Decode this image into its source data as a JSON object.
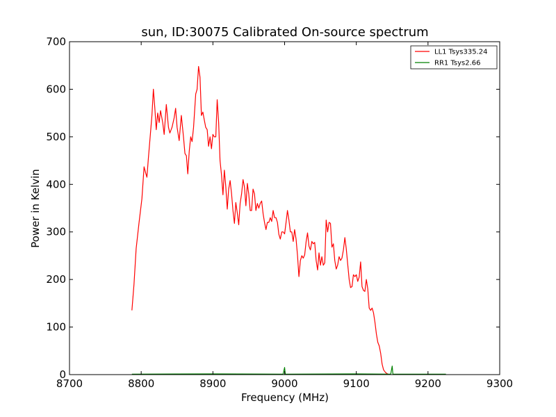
{
  "chart_data": {
    "type": "line",
    "title": "sun, ID:30075 Calibrated On-source spectrum",
    "xlabel": "Frequency (MHz)",
    "ylabel": "Power in Kelvin",
    "xlim": [
      8700,
      9300
    ],
    "ylim": [
      0,
      700
    ],
    "xticks": [
      8700,
      8800,
      8900,
      9000,
      9100,
      9200,
      9300
    ],
    "yticks": [
      0,
      100,
      200,
      300,
      400,
      500,
      600,
      700
    ],
    "grid": false,
    "legend_position": "top-right",
    "series": [
      {
        "name": "LL1 Tsys335.24",
        "color": "#ff0000",
        "points": [
          [
            8787,
            135
          ],
          [
            8790,
            190
          ],
          [
            8793,
            265
          ],
          [
            8797,
            320
          ],
          [
            8801,
            370
          ],
          [
            8804,
            437
          ],
          [
            8806,
            425
          ],
          [
            8808,
            415
          ],
          [
            8810,
            455
          ],
          [
            8812,
            490
          ],
          [
            8815,
            545
          ],
          [
            8817,
            600
          ],
          [
            8819,
            560
          ],
          [
            8821,
            515
          ],
          [
            8823,
            550
          ],
          [
            8825,
            530
          ],
          [
            8827,
            555
          ],
          [
            8830,
            530
          ],
          [
            8832,
            505
          ],
          [
            8835,
            568
          ],
          [
            8838,
            520
          ],
          [
            8840,
            508
          ],
          [
            8843,
            520
          ],
          [
            8846,
            540
          ],
          [
            8848,
            560
          ],
          [
            8850,
            520
          ],
          [
            8853,
            492
          ],
          [
            8856,
            545
          ],
          [
            8859,
            500
          ],
          [
            8861,
            465
          ],
          [
            8863,
            460
          ],
          [
            8865,
            422
          ],
          [
            8867,
            470
          ],
          [
            8869,
            500
          ],
          [
            8871,
            490
          ],
          [
            8873,
            520
          ],
          [
            8876,
            590
          ],
          [
            8878,
            600
          ],
          [
            8880,
            648
          ],
          [
            8882,
            625
          ],
          [
            8884,
            545
          ],
          [
            8886,
            552
          ],
          [
            8888,
            535
          ],
          [
            8890,
            520
          ],
          [
            8892,
            515
          ],
          [
            8894,
            480
          ],
          [
            8896,
            500
          ],
          [
            8898,
            475
          ],
          [
            8900,
            505
          ],
          [
            8902,
            500
          ],
          [
            8904,
            500
          ],
          [
            8906,
            578
          ],
          [
            8908,
            530
          ],
          [
            8910,
            450
          ],
          [
            8912,
            420
          ],
          [
            8914,
            378
          ],
          [
            8916,
            430
          ],
          [
            8918,
            395
          ],
          [
            8920,
            348
          ],
          [
            8922,
            390
          ],
          [
            8924,
            408
          ],
          [
            8926,
            380
          ],
          [
            8928,
            345
          ],
          [
            8930,
            318
          ],
          [
            8932,
            362
          ],
          [
            8934,
            340
          ],
          [
            8936,
            315
          ],
          [
            8938,
            360
          ],
          [
            8940,
            380
          ],
          [
            8942,
            410
          ],
          [
            8944,
            395
          ],
          [
            8946,
            355
          ],
          [
            8948,
            402
          ],
          [
            8950,
            380
          ],
          [
            8952,
            345
          ],
          [
            8954,
            345
          ],
          [
            8956,
            390
          ],
          [
            8958,
            380
          ],
          [
            8960,
            345
          ],
          [
            8962,
            360
          ],
          [
            8964,
            350
          ],
          [
            8966,
            360
          ],
          [
            8968,
            365
          ],
          [
            8970,
            338
          ],
          [
            8972,
            320
          ],
          [
            8974,
            305
          ],
          [
            8976,
            320
          ],
          [
            8978,
            320
          ],
          [
            8980,
            330
          ],
          [
            8982,
            322
          ],
          [
            8984,
            345
          ],
          [
            8986,
            330
          ],
          [
            8988,
            330
          ],
          [
            8990,
            320
          ],
          [
            8992,
            295
          ],
          [
            8994,
            285
          ],
          [
            8996,
            300
          ],
          [
            8998,
            300
          ],
          [
            9000,
            296
          ],
          [
            9002,
            320
          ],
          [
            9004,
            345
          ],
          [
            9006,
            325
          ],
          [
            9008,
            300
          ],
          [
            9010,
            300
          ],
          [
            9012,
            280
          ],
          [
            9014,
            305
          ],
          [
            9016,
            285
          ],
          [
            9018,
            250
          ],
          [
            9020,
            206
          ],
          [
            9022,
            240
          ],
          [
            9024,
            250
          ],
          [
            9026,
            245
          ],
          [
            9028,
            252
          ],
          [
            9030,
            280
          ],
          [
            9032,
            298
          ],
          [
            9034,
            270
          ],
          [
            9036,
            262
          ],
          [
            9038,
            280
          ],
          [
            9040,
            275
          ],
          [
            9042,
            278
          ],
          [
            9044,
            240
          ],
          [
            9046,
            220
          ],
          [
            9048,
            256
          ],
          [
            9050,
            230
          ],
          [
            9052,
            248
          ],
          [
            9054,
            230
          ],
          [
            9056,
            235
          ],
          [
            9058,
            325
          ],
          [
            9060,
            300
          ],
          [
            9062,
            320
          ],
          [
            9064,
            318
          ],
          [
            9066,
            268
          ],
          [
            9068,
            275
          ],
          [
            9070,
            240
          ],
          [
            9072,
            222
          ],
          [
            9074,
            230
          ],
          [
            9076,
            248
          ],
          [
            9078,
            240
          ],
          [
            9080,
            245
          ],
          [
            9082,
            262
          ],
          [
            9084,
            288
          ],
          [
            9086,
            265
          ],
          [
            9088,
            232
          ],
          [
            9090,
            200
          ],
          [
            9092,
            183
          ],
          [
            9094,
            185
          ],
          [
            9096,
            210
          ],
          [
            9098,
            206
          ],
          [
            9100,
            210
          ],
          [
            9102,
            196
          ],
          [
            9104,
            205
          ],
          [
            9106,
            237
          ],
          [
            9108,
            185
          ],
          [
            9110,
            177
          ],
          [
            9112,
            175
          ],
          [
            9114,
            200
          ],
          [
            9116,
            180
          ],
          [
            9118,
            140
          ],
          [
            9120,
            135
          ],
          [
            9122,
            140
          ],
          [
            9124,
            130
          ],
          [
            9126,
            110
          ],
          [
            9128,
            85
          ],
          [
            9130,
            68
          ],
          [
            9132,
            60
          ],
          [
            9134,
            45
          ],
          [
            9136,
            22
          ],
          [
            9138,
            10
          ],
          [
            9141,
            4
          ],
          [
            9145,
            0
          ],
          [
            9148,
            0
          ]
        ]
      },
      {
        "name": "RR1 Tsys2.66",
        "color": "#008000",
        "points": [
          [
            8787,
            1
          ],
          [
            8900,
            1.5
          ],
          [
            8998,
            1
          ],
          [
            9000,
            15
          ],
          [
            9001,
            1
          ],
          [
            9100,
            1.5
          ],
          [
            9148,
            1
          ],
          [
            9150,
            18
          ],
          [
            9151,
            1
          ],
          [
            9210,
            1
          ],
          [
            9225,
            1
          ]
        ]
      }
    ]
  }
}
